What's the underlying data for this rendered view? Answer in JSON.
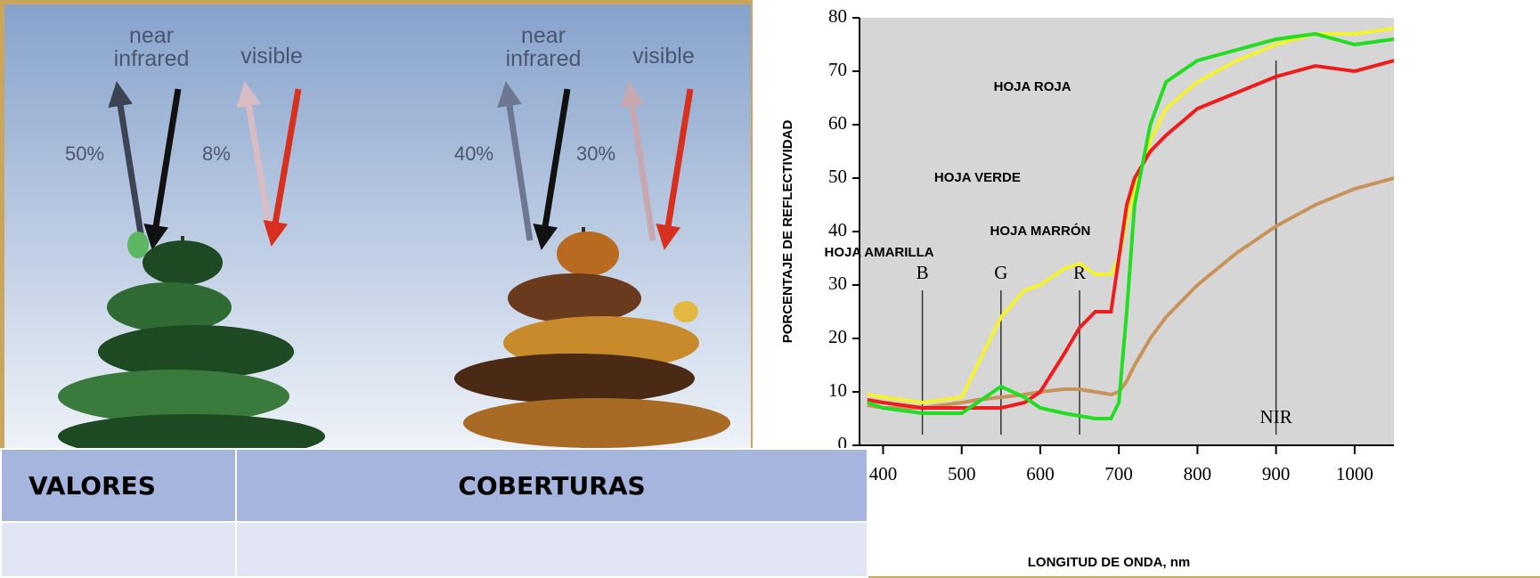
{
  "illustration": {
    "panels": [
      {
        "infrared": "near infrared",
        "visible": "visible",
        "infrared_pct": "50%",
        "visible_pct": "8%"
      },
      {
        "infrared": "near infrared",
        "visible": "visible",
        "infrared_pct": "40%",
        "visible_pct": "30%"
      }
    ]
  },
  "chart_data": {
    "type": "line",
    "xlabel": "LONGITUD DE ONDA, nm",
    "ylabel": "PORCENTAJE DE REFLECTIVIDAD",
    "x": [
      380,
      400,
      450,
      500,
      520,
      550,
      580,
      600,
      630,
      650,
      670,
      690,
      700,
      710,
      720,
      740,
      760,
      800,
      850,
      900,
      950,
      1000,
      1050
    ],
    "series": [
      {
        "name": "HOJA MARRÓN",
        "color": "#c8935a",
        "values": [
          7.5,
          7,
          7,
          8,
          8.5,
          9,
          9.5,
          10,
          10.5,
          10.5,
          10,
          9.5,
          10,
          12,
          15,
          20,
          24,
          30,
          36,
          41,
          45,
          48,
          50
        ]
      },
      {
        "name": "HOJA AMARILLA",
        "color": "#f2f230",
        "values": [
          9.5,
          9,
          8,
          9,
          15,
          24,
          29,
          30,
          33,
          34,
          32,
          32,
          35,
          42,
          48,
          57,
          63,
          68,
          72,
          75,
          77,
          77,
          78
        ]
      },
      {
        "name": "HOJA ROJA",
        "color": "#ee1c1c",
        "values": [
          8.5,
          8,
          7,
          7,
          7,
          7,
          8,
          10,
          17,
          22,
          25,
          25,
          35,
          45,
          50,
          55,
          58,
          63,
          66,
          69,
          71,
          70,
          72
        ]
      },
      {
        "name": "HOJA VERDE",
        "color": "#22dd22",
        "values": [
          8,
          7,
          6,
          6,
          8,
          11,
          9,
          7,
          6,
          5.5,
          5,
          5,
          8,
          25,
          45,
          60,
          68,
          72,
          74,
          76,
          77,
          75,
          76
        ]
      }
    ],
    "bands": [
      {
        "label": "B",
        "x": 450
      },
      {
        "label": "G",
        "x": 550
      },
      {
        "label": "R",
        "x": 650
      },
      {
        "label": "NIR",
        "x": 900
      }
    ],
    "xlim": [
      370,
      1050
    ],
    "xticks": [
      400,
      500,
      600,
      700,
      800,
      900,
      1000
    ],
    "ylim": [
      0,
      80
    ],
    "yticks": [
      0,
      10,
      20,
      30,
      40,
      50,
      60,
      70,
      80
    ]
  },
  "table": {
    "header": [
      "VALORES",
      "COBERTURAS"
    ],
    "rows": []
  }
}
